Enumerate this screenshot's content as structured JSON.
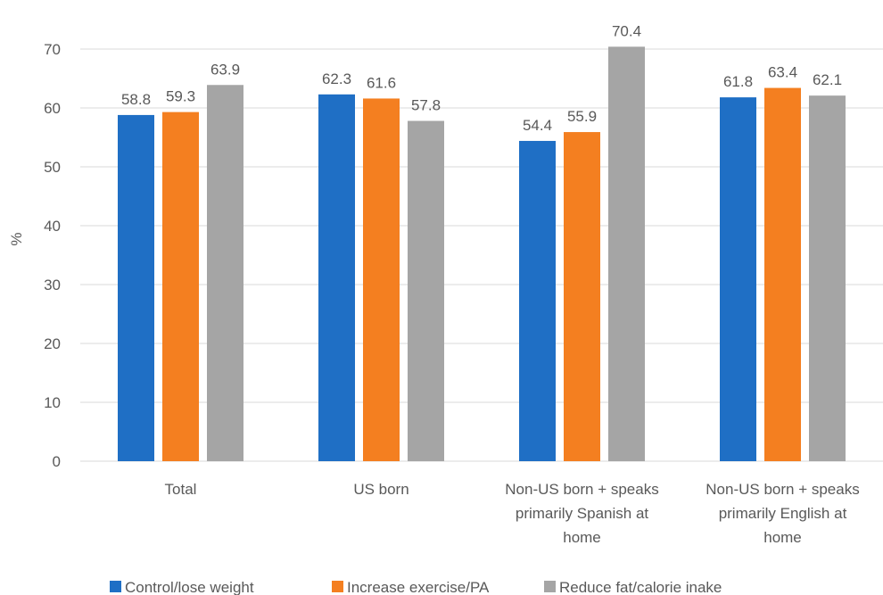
{
  "chart_data": {
    "type": "bar",
    "title": "",
    "xlabel": "",
    "ylabel": "%",
    "ylim": [
      0,
      70
    ],
    "yticks": [
      0,
      10,
      20,
      30,
      40,
      50,
      60,
      70
    ],
    "grid": true,
    "legend_position": "bottom",
    "categories": [
      [
        "Total"
      ],
      [
        "US born"
      ],
      [
        "Non-US born + speaks",
        "primarily Spanish at",
        "home"
      ],
      [
        "Non-US born + speaks",
        "primarily English at",
        "home"
      ]
    ],
    "series": [
      {
        "name": "Control/lose weight",
        "color": "#1f6fc5",
        "values": [
          58.8,
          62.3,
          54.4,
          61.8
        ]
      },
      {
        "name": "Increase exercise/PA",
        "color": "#f47f20",
        "values": [
          59.3,
          61.6,
          55.9,
          63.4
        ]
      },
      {
        "name": "Reduce fat/calorie inake",
        "color": "#a5a5a5",
        "values": [
          63.9,
          57.8,
          70.4,
          62.1
        ]
      }
    ]
  }
}
